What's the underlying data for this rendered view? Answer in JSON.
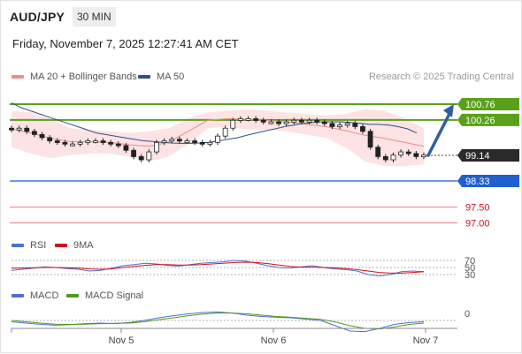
{
  "header": {
    "symbol": "AUD/JPY",
    "timeframe": "30 MIN",
    "datetime": "Friday, November 7, 2025 12:27:41 AM CET",
    "credit": "Research © 2025 Trading Central"
  },
  "legend": {
    "bollinger": {
      "label": "MA 20 + Bollinger Bands",
      "color": "#f08b8b"
    },
    "ma50": {
      "label": "MA 50",
      "color": "#2f4f8f"
    },
    "rsi": {
      "label": "RSI",
      "color": "#4f6fd0"
    },
    "rsi_ma": {
      "label": "9MA",
      "color": "#d0101a"
    },
    "macd": {
      "label": "MACD",
      "color": "#4f6fd0"
    },
    "macd_signal": {
      "label": "MACD Signal",
      "color": "#4f9a1a"
    }
  },
  "colors": {
    "green_level": "#5aa01a",
    "blue_level": "#1f5fd0",
    "red_level": "#d0101a",
    "price_tag": "#2a2a2a",
    "arrow": "#2f5fa0",
    "candle": "#222222",
    "bands_fill": "#fde3e3"
  },
  "chart_data": [
    {
      "type": "candlestick",
      "title": "AUD/JPY 30 MIN",
      "x_ticks": [
        "Nov 5",
        "Nov 6",
        "Nov 7"
      ],
      "ylim": [
        96.6,
        101.2
      ],
      "grid": false,
      "levels": [
        {
          "value": 100.76,
          "label": "100.76",
          "style": "resistance-green"
        },
        {
          "value": 100.26,
          "label": "100.26",
          "style": "resistance-green"
        },
        {
          "value": 99.14,
          "label": "99.14",
          "style": "last-price"
        },
        {
          "value": 98.33,
          "label": "98.33",
          "style": "support-blue"
        },
        {
          "value": 97.5,
          "label": "97.50",
          "style": "support-red"
        },
        {
          "value": 97.0,
          "label": "97.00",
          "style": "support-red"
        }
      ],
      "close_series": [
        99.95,
        100.0,
        99.9,
        99.8,
        99.7,
        99.6,
        99.55,
        99.5,
        99.5,
        99.55,
        99.6,
        99.6,
        99.55,
        99.5,
        99.45,
        99.3,
        99.1,
        99.0,
        99.25,
        99.55,
        99.6,
        99.65,
        99.6,
        99.6,
        99.55,
        99.5,
        99.55,
        99.75,
        100.0,
        100.25,
        100.3,
        100.3,
        100.25,
        100.2,
        100.2,
        100.15,
        100.2,
        100.25,
        100.2,
        100.25,
        100.2,
        100.15,
        100.05,
        100.1,
        100.15,
        100.05,
        99.9,
        99.4,
        99.1,
        99.0,
        99.15,
        99.25,
        99.2,
        99.1,
        99.15
      ],
      "ma50_series": [
        100.8,
        100.65,
        100.55,
        100.45,
        100.35,
        100.25,
        100.15,
        100.05,
        99.95,
        99.85,
        99.8,
        99.75,
        99.7,
        99.65,
        99.6,
        99.58,
        99.55,
        99.53,
        99.52,
        99.52,
        99.53,
        99.55,
        99.6,
        99.65,
        99.7,
        99.78,
        99.85,
        99.92,
        99.98,
        100.05,
        100.1,
        100.15,
        100.18,
        100.2,
        100.2,
        100.2,
        100.18,
        100.15,
        100.12,
        100.12,
        100.1,
        100.05,
        99.98,
        99.85
      ],
      "bollinger": {
        "upper": [
          100.55,
          100.5,
          100.3,
          100.0,
          99.95,
          99.9,
          99.85,
          99.9,
          100.0,
          100.3,
          100.5,
          100.55,
          100.6,
          100.55,
          100.5,
          100.45,
          100.4,
          100.45,
          100.6,
          100.55,
          100.3,
          100.0
        ],
        "lower": [
          99.4,
          99.2,
          99.05,
          99.15,
          99.2,
          99.2,
          99.1,
          98.95,
          99.1,
          99.5,
          100.0,
          100.05,
          99.95,
          99.95,
          99.9,
          99.8,
          99.7,
          99.4,
          98.95,
          98.8,
          98.8,
          98.85
        ]
      }
    },
    {
      "type": "line",
      "title": "RSI",
      "levels": [
        70,
        50,
        30
      ],
      "series": [
        {
          "name": "RSI",
          "values": [
            42,
            45,
            48,
            52,
            50,
            47,
            45,
            40,
            42,
            48,
            55,
            58,
            62,
            60,
            56,
            54,
            58,
            62,
            64,
            66,
            70,
            68,
            62,
            55,
            50,
            48,
            52,
            55,
            50,
            46,
            44,
            40,
            30,
            26,
            30,
            38,
            40,
            38
          ]
        },
        {
          "name": "9MA",
          "values": [
            48,
            48,
            49,
            50,
            50,
            49,
            48,
            46,
            45,
            46,
            50,
            53,
            56,
            58,
            58,
            57,
            57,
            58,
            60,
            62,
            64,
            65,
            64,
            61,
            57,
            53,
            51,
            51,
            50,
            49,
            47,
            44,
            40,
            36,
            34,
            34,
            36,
            38
          ]
        }
      ]
    },
    {
      "type": "line",
      "title": "MACD",
      "levels": [
        0
      ],
      "series": [
        {
          "name": "MACD",
          "values": [
            -0.05,
            -0.1,
            -0.15,
            -0.18,
            -0.16,
            -0.12,
            -0.1,
            -0.12,
            -0.08,
            0.0,
            0.1,
            0.18,
            0.25,
            0.3,
            0.32,
            0.28,
            0.2,
            0.15,
            0.12,
            0.1,
            0.05,
            0.0,
            -0.2,
            -0.4,
            -0.42,
            -0.3,
            -0.15,
            -0.08,
            -0.05
          ]
        },
        {
          "name": "MACD Signal",
          "values": [
            0.0,
            -0.05,
            -0.1,
            -0.14,
            -0.15,
            -0.14,
            -0.12,
            -0.11,
            -0.1,
            -0.05,
            0.03,
            0.1,
            0.18,
            0.24,
            0.28,
            0.28,
            0.25,
            0.2,
            0.15,
            0.12,
            0.08,
            0.04,
            -0.06,
            -0.2,
            -0.3,
            -0.32,
            -0.25,
            -0.15,
            -0.1
          ]
        }
      ]
    }
  ]
}
